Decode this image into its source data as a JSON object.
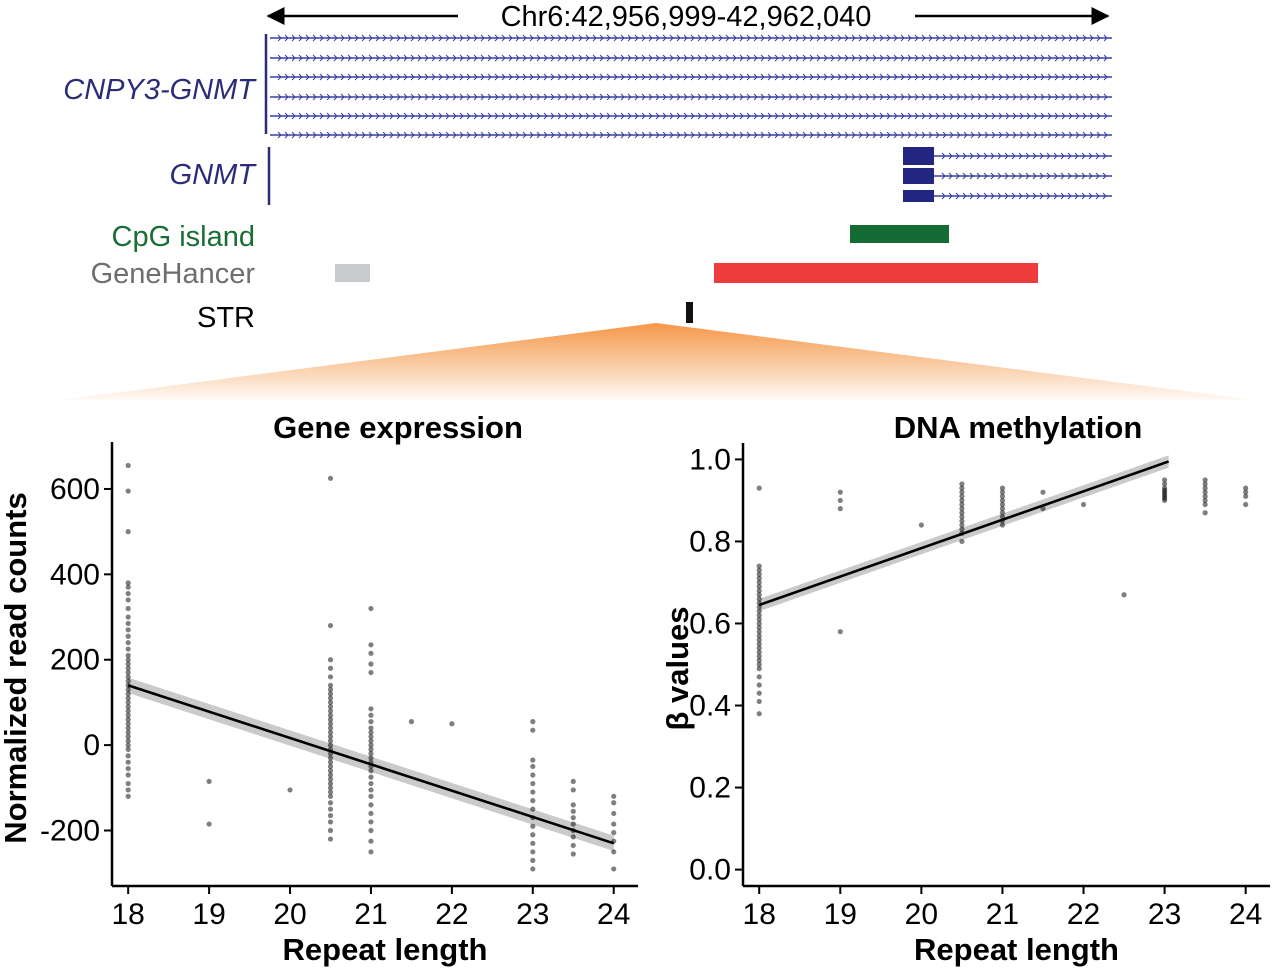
{
  "browser": {
    "region": "Chr6:42,956,999-42,962,040",
    "tracks": [
      {
        "id": "cnpy3",
        "label": "CNPY3-GNMT",
        "color": "#2a2c7a"
      },
      {
        "id": "gnmt",
        "label": "GNMT",
        "color": "#2a2c7a"
      },
      {
        "id": "cpg",
        "label": "CpG island",
        "color": "#1a6e35"
      },
      {
        "id": "genehancer",
        "label": "GeneHancer",
        "color": "#6e6e6e"
      },
      {
        "id": "str",
        "label": "STR",
        "color": "#000000"
      }
    ],
    "colors": {
      "transcript": "#3a3ea0",
      "exon": "#232680",
      "cpg_bar": "#146b33",
      "enhancer_minor": "#c8cacc",
      "enhancer_major": "#ee3b3b",
      "str_mark": "#111111",
      "zoom_wedge": "#f5913e"
    }
  },
  "chart_data": [
    {
      "id": "expression",
      "type": "scatter",
      "title": "Gene expression",
      "xlabel": "Repeat length",
      "ylabel": "Normalized read counts",
      "xlim": [
        17.8,
        24.3
      ],
      "ylim": [
        -330,
        710
      ],
      "xticks": [
        18,
        19,
        20,
        21,
        22,
        23,
        24
      ],
      "yticks": [
        -200,
        0,
        200,
        400,
        600
      ],
      "grid": false,
      "fit": {
        "x": [
          18,
          24
        ],
        "y": [
          140,
          -230
        ],
        "band": 18
      },
      "points": [
        [
          18,
          655
        ],
        [
          18,
          595
        ],
        [
          18,
          500
        ],
        [
          18,
          380
        ],
        [
          18,
          370
        ],
        [
          18,
          355
        ],
        [
          18,
          340
        ],
        [
          18,
          320
        ],
        [
          18,
          300
        ],
        [
          18,
          285
        ],
        [
          18,
          270
        ],
        [
          18,
          255
        ],
        [
          18,
          240
        ],
        [
          18,
          225
        ],
        [
          18,
          210
        ],
        [
          18,
          200
        ],
        [
          18,
          190
        ],
        [
          18,
          180
        ],
        [
          18,
          170
        ],
        [
          18,
          160
        ],
        [
          18,
          150
        ],
        [
          18,
          140
        ],
        [
          18,
          130
        ],
        [
          18,
          120
        ],
        [
          18,
          110
        ],
        [
          18,
          100
        ],
        [
          18,
          90
        ],
        [
          18,
          80
        ],
        [
          18,
          70
        ],
        [
          18,
          60
        ],
        [
          18,
          50
        ],
        [
          18,
          40
        ],
        [
          18,
          30
        ],
        [
          18,
          20
        ],
        [
          18,
          10
        ],
        [
          18,
          0
        ],
        [
          18,
          -10
        ],
        [
          18,
          -25
        ],
        [
          18,
          -40
        ],
        [
          18,
          -55
        ],
        [
          18,
          -70
        ],
        [
          18,
          -90
        ],
        [
          18,
          -105
        ],
        [
          18,
          -120
        ],
        [
          19,
          -85
        ],
        [
          19,
          -185
        ],
        [
          20,
          -105
        ],
        [
          21.5,
          55
        ],
        [
          22,
          50
        ],
        [
          20.5,
          625
        ],
        [
          20.5,
          280
        ],
        [
          20.5,
          200
        ],
        [
          20.5,
          180
        ],
        [
          20.5,
          160
        ],
        [
          20.5,
          140
        ],
        [
          20.5,
          130
        ],
        [
          20.5,
          120
        ],
        [
          20.5,
          110
        ],
        [
          20.5,
          100
        ],
        [
          20.5,
          90
        ],
        [
          20.5,
          80
        ],
        [
          20.5,
          70
        ],
        [
          20.5,
          60
        ],
        [
          20.5,
          50
        ],
        [
          20.5,
          40
        ],
        [
          20.5,
          30
        ],
        [
          20.5,
          20
        ],
        [
          20.5,
          10
        ],
        [
          20.5,
          0
        ],
        [
          20.5,
          -10
        ],
        [
          20.5,
          -20
        ],
        [
          20.5,
          -30
        ],
        [
          20.5,
          -40
        ],
        [
          20.5,
          -50
        ],
        [
          20.5,
          -60
        ],
        [
          20.5,
          -70
        ],
        [
          20.5,
          -80
        ],
        [
          20.5,
          -90
        ],
        [
          20.5,
          -100
        ],
        [
          20.5,
          -110
        ],
        [
          20.5,
          -120
        ],
        [
          20.5,
          -135
        ],
        [
          20.5,
          -150
        ],
        [
          20.5,
          -165
        ],
        [
          20.5,
          -180
        ],
        [
          20.5,
          -200
        ],
        [
          20.5,
          -220
        ],
        [
          21,
          320
        ],
        [
          21,
          235
        ],
        [
          21,
          215
        ],
        [
          21,
          190
        ],
        [
          21,
          170
        ],
        [
          21,
          85
        ],
        [
          21,
          70
        ],
        [
          21,
          55
        ],
        [
          21,
          40
        ],
        [
          21,
          30
        ],
        [
          21,
          20
        ],
        [
          21,
          10
        ],
        [
          21,
          0
        ],
        [
          21,
          -10
        ],
        [
          21,
          -20
        ],
        [
          21,
          -30
        ],
        [
          21,
          -40
        ],
        [
          21,
          -50
        ],
        [
          21,
          -60
        ],
        [
          21,
          -75
        ],
        [
          21,
          -90
        ],
        [
          21,
          -105
        ],
        [
          21,
          -120
        ],
        [
          21,
          -140
        ],
        [
          21,
          -160
        ],
        [
          21,
          -180
        ],
        [
          21,
          -200
        ],
        [
          21,
          -225
        ],
        [
          21,
          -250
        ],
        [
          23,
          55
        ],
        [
          23,
          35
        ],
        [
          23,
          -35
        ],
        [
          23,
          -50
        ],
        [
          23,
          -70
        ],
        [
          23,
          -90
        ],
        [
          23,
          -110
        ],
        [
          23,
          -130
        ],
        [
          23,
          -150
        ],
        [
          23,
          -170
        ],
        [
          23,
          -190
        ],
        [
          23,
          -210
        ],
        [
          23,
          -230
        ],
        [
          23,
          -250
        ],
        [
          23,
          -270
        ],
        [
          23,
          -290
        ],
        [
          23.5,
          -85
        ],
        [
          23.5,
          -105
        ],
        [
          23.5,
          -140
        ],
        [
          23.5,
          -155
        ],
        [
          23.5,
          -170
        ],
        [
          23.5,
          -185
        ],
        [
          23.5,
          -200
        ],
        [
          23.5,
          -215
        ],
        [
          23.5,
          -235
        ],
        [
          23.5,
          -255
        ],
        [
          24,
          -120
        ],
        [
          24,
          -135
        ],
        [
          24,
          -160
        ],
        [
          24,
          -185
        ],
        [
          24,
          -205
        ],
        [
          24,
          -225
        ],
        [
          24,
          -250
        ],
        [
          24,
          -290
        ]
      ]
    },
    {
      "id": "methylation",
      "type": "scatter",
      "title": "DNA methylation",
      "xlabel": "Repeat length",
      "ylabel": "β values",
      "xlim": [
        17.8,
        24.3
      ],
      "ylim": [
        -0.04,
        1.04
      ],
      "xticks": [
        18,
        19,
        20,
        21,
        22,
        23,
        24
      ],
      "yticks": [
        0.0,
        0.2,
        0.4,
        0.6,
        0.8,
        1.0
      ],
      "ytick_labels": [
        "0.0",
        "0.2",
        "0.4",
        "0.6",
        "0.8",
        "1.0"
      ],
      "grid": false,
      "fit": {
        "x": [
          18,
          23.05
        ],
        "y": [
          0.645,
          0.995
        ],
        "band": 0.015
      },
      "points": [
        [
          18,
          0.93
        ],
        [
          18,
          0.74
        ],
        [
          18,
          0.73
        ],
        [
          18,
          0.72
        ],
        [
          18,
          0.71
        ],
        [
          18,
          0.7
        ],
        [
          18,
          0.69
        ],
        [
          18,
          0.68
        ],
        [
          18,
          0.67
        ],
        [
          18,
          0.66
        ],
        [
          18,
          0.65
        ],
        [
          18,
          0.64
        ],
        [
          18,
          0.63
        ],
        [
          18,
          0.62
        ],
        [
          18,
          0.61
        ],
        [
          18,
          0.6
        ],
        [
          18,
          0.59
        ],
        [
          18,
          0.58
        ],
        [
          18,
          0.57
        ],
        [
          18,
          0.56
        ],
        [
          18,
          0.55
        ],
        [
          18,
          0.54
        ],
        [
          18,
          0.53
        ],
        [
          18,
          0.52
        ],
        [
          18,
          0.51
        ],
        [
          18,
          0.5
        ],
        [
          18,
          0.49
        ],
        [
          18,
          0.47
        ],
        [
          18,
          0.45
        ],
        [
          18,
          0.43
        ],
        [
          18,
          0.41
        ],
        [
          18,
          0.38
        ],
        [
          19,
          0.92
        ],
        [
          19,
          0.9
        ],
        [
          19,
          0.88
        ],
        [
          19,
          0.58
        ],
        [
          20,
          0.84
        ],
        [
          20.5,
          0.94
        ],
        [
          20.5,
          0.93
        ],
        [
          20.5,
          0.92
        ],
        [
          20.5,
          0.91
        ],
        [
          20.5,
          0.9
        ],
        [
          20.5,
          0.89
        ],
        [
          20.5,
          0.88
        ],
        [
          20.5,
          0.87
        ],
        [
          20.5,
          0.86
        ],
        [
          20.5,
          0.85
        ],
        [
          20.5,
          0.84
        ],
        [
          20.5,
          0.83
        ],
        [
          20.5,
          0.82
        ],
        [
          20.5,
          0.8
        ],
        [
          21,
          0.93
        ],
        [
          21,
          0.92
        ],
        [
          21,
          0.91
        ],
        [
          21,
          0.9
        ],
        [
          21,
          0.89
        ],
        [
          21,
          0.88
        ],
        [
          21,
          0.87
        ],
        [
          21,
          0.86
        ],
        [
          21,
          0.85
        ],
        [
          21,
          0.84
        ],
        [
          21.5,
          0.92
        ],
        [
          21.5,
          0.88
        ],
        [
          22,
          0.89
        ],
        [
          22.5,
          0.67
        ],
        [
          23,
          0.95
        ],
        [
          23,
          0.94
        ],
        [
          23,
          0.93
        ],
        [
          23,
          0.925
        ],
        [
          23,
          0.92
        ],
        [
          23,
          0.915
        ],
        [
          23,
          0.91
        ],
        [
          23,
          0.905
        ],
        [
          23,
          0.9
        ],
        [
          23.5,
          0.95
        ],
        [
          23.5,
          0.94
        ],
        [
          23.5,
          0.93
        ],
        [
          23.5,
          0.92
        ],
        [
          23.5,
          0.91
        ],
        [
          23.5,
          0.9
        ],
        [
          23.5,
          0.89
        ],
        [
          23.5,
          0.87
        ],
        [
          24,
          0.93
        ],
        [
          24,
          0.92
        ],
        [
          24,
          0.91
        ],
        [
          24,
          0.89
        ]
      ]
    }
  ]
}
